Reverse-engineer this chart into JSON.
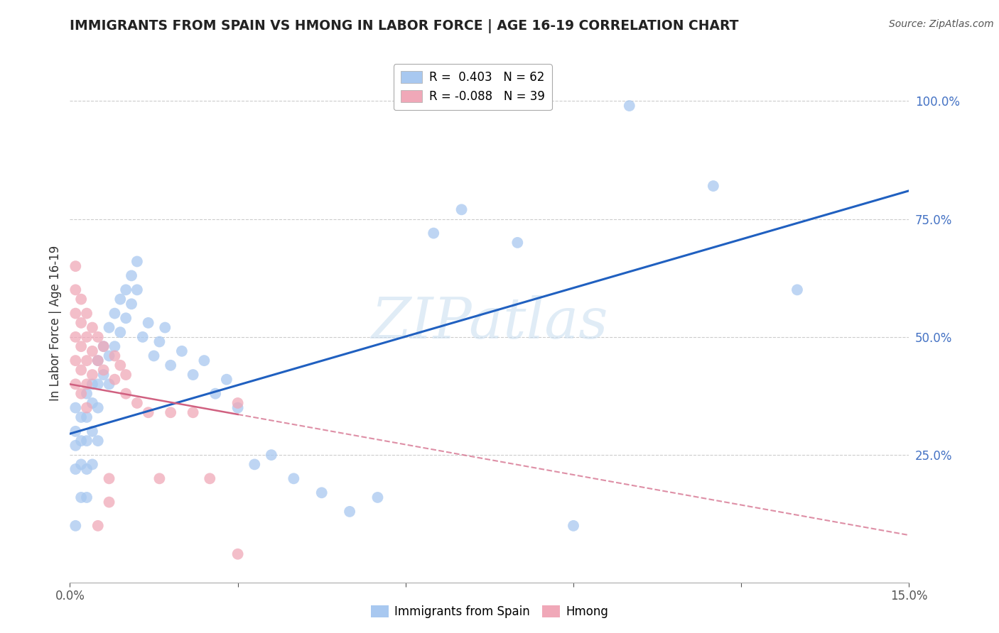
{
  "title": "IMMIGRANTS FROM SPAIN VS HMONG IN LABOR FORCE | AGE 16-19 CORRELATION CHART",
  "source": "Source: ZipAtlas.com",
  "ylabel": "In Labor Force | Age 16-19",
  "xlim": [
    0.0,
    0.15
  ],
  "ylim": [
    -0.02,
    1.08
  ],
  "xticks": [
    0.0,
    0.03,
    0.06,
    0.09,
    0.12,
    0.15
  ],
  "xtick_labels": [
    "0.0%",
    "",
    "",
    "",
    "",
    "15.0%"
  ],
  "yticks_right": [
    0.25,
    0.5,
    0.75,
    1.0
  ],
  "ytick_labels_right": [
    "25.0%",
    "50.0%",
    "75.0%",
    "100.0%"
  ],
  "spain_color": "#a8c8f0",
  "hmong_color": "#f0a8b8",
  "spain_line_color": "#2060c0",
  "hmong_line_color": "#d06080",
  "watermark": "ZIPatlas",
  "spain_x": [
    0.001,
    0.001,
    0.001,
    0.001,
    0.001,
    0.002,
    0.002,
    0.002,
    0.002,
    0.003,
    0.003,
    0.003,
    0.003,
    0.003,
    0.004,
    0.004,
    0.004,
    0.004,
    0.005,
    0.005,
    0.005,
    0.005,
    0.006,
    0.006,
    0.007,
    0.007,
    0.007,
    0.008,
    0.008,
    0.009,
    0.009,
    0.01,
    0.01,
    0.011,
    0.011,
    0.012,
    0.012,
    0.013,
    0.014,
    0.015,
    0.016,
    0.017,
    0.018,
    0.02,
    0.022,
    0.024,
    0.026,
    0.028,
    0.03,
    0.033,
    0.036,
    0.04,
    0.045,
    0.05,
    0.055,
    0.065,
    0.07,
    0.08,
    0.09,
    0.1,
    0.115,
    0.13
  ],
  "spain_y": [
    0.35,
    0.3,
    0.27,
    0.22,
    0.1,
    0.33,
    0.28,
    0.23,
    0.16,
    0.38,
    0.33,
    0.28,
    0.22,
    0.16,
    0.4,
    0.36,
    0.3,
    0.23,
    0.45,
    0.4,
    0.35,
    0.28,
    0.48,
    0.42,
    0.52,
    0.46,
    0.4,
    0.55,
    0.48,
    0.58,
    0.51,
    0.6,
    0.54,
    0.63,
    0.57,
    0.66,
    0.6,
    0.5,
    0.53,
    0.46,
    0.49,
    0.52,
    0.44,
    0.47,
    0.42,
    0.45,
    0.38,
    0.41,
    0.35,
    0.23,
    0.25,
    0.2,
    0.17,
    0.13,
    0.16,
    0.72,
    0.77,
    0.7,
    0.1,
    0.99,
    0.82,
    0.6
  ],
  "hmong_x": [
    0.001,
    0.001,
    0.001,
    0.001,
    0.001,
    0.001,
    0.002,
    0.002,
    0.002,
    0.002,
    0.002,
    0.003,
    0.003,
    0.003,
    0.003,
    0.003,
    0.004,
    0.004,
    0.004,
    0.005,
    0.005,
    0.005,
    0.006,
    0.006,
    0.007,
    0.007,
    0.008,
    0.008,
    0.009,
    0.01,
    0.01,
    0.012,
    0.014,
    0.016,
    0.018,
    0.022,
    0.025,
    0.03,
    0.03
  ],
  "hmong_y": [
    0.65,
    0.6,
    0.55,
    0.5,
    0.45,
    0.4,
    0.58,
    0.53,
    0.48,
    0.43,
    0.38,
    0.55,
    0.5,
    0.45,
    0.4,
    0.35,
    0.52,
    0.47,
    0.42,
    0.5,
    0.45,
    0.1,
    0.48,
    0.43,
    0.2,
    0.15,
    0.46,
    0.41,
    0.44,
    0.42,
    0.38,
    0.36,
    0.34,
    0.2,
    0.34,
    0.34,
    0.2,
    0.36,
    0.04
  ],
  "spain_line_x": [
    0.0,
    0.15
  ],
  "spain_line_y": [
    0.295,
    0.81
  ],
  "hmong_line_x": [
    0.0,
    0.15
  ],
  "hmong_line_y": [
    0.4,
    0.08
  ]
}
